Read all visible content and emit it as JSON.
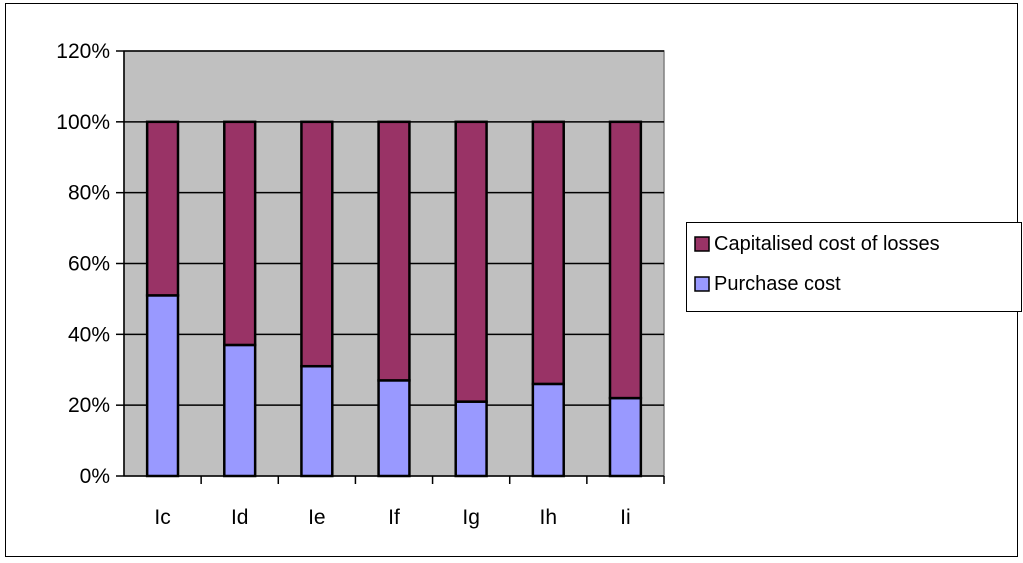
{
  "chart_data": {
    "type": "bar",
    "stacked": true,
    "categories": [
      "Ic",
      "Id",
      "Ie",
      "If",
      "Ig",
      "Ih",
      "Ii"
    ],
    "series": [
      {
        "name": "Purchase cost",
        "color": "#9999FF",
        "values": [
          51,
          37,
          31,
          27,
          21,
          26,
          22
        ]
      },
      {
        "name": "Capitalised cost of losses",
        "color": "#993366",
        "values": [
          49,
          63,
          69,
          73,
          79,
          74,
          78
        ]
      }
    ],
    "yticks": [
      "0%",
      "20%",
      "40%",
      "60%",
      "80%",
      "100%",
      "120%"
    ],
    "ylim": [
      0,
      120
    ],
    "grid": true,
    "plot_background": "#C0C0C0",
    "legend": {
      "position": "right",
      "entries": [
        "Capitalised cost of losses",
        "Purchase cost"
      ]
    }
  }
}
